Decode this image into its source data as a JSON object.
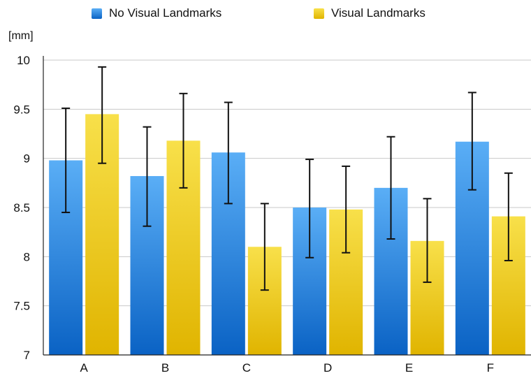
{
  "chart_data": {
    "type": "bar",
    "unit_label": "[mm]",
    "categories": [
      "A",
      "B",
      "C",
      "D",
      "E",
      "F"
    ],
    "series": [
      {
        "name": "No Visual Landmarks",
        "color_top": "#5aaef6",
        "color_bottom": "#0a62c4",
        "values": [
          8.98,
          8.82,
          9.06,
          8.5,
          8.7,
          9.17
        ],
        "error_low": [
          8.45,
          8.31,
          8.54,
          7.99,
          8.18,
          8.68
        ],
        "error_high": [
          9.51,
          9.32,
          9.57,
          8.99,
          9.22,
          9.67
        ]
      },
      {
        "name": "Visual Landmarks",
        "color_top": "#f8e04a",
        "color_bottom": "#e0b400",
        "values": [
          9.45,
          9.18,
          8.1,
          8.48,
          8.16,
          8.41
        ],
        "error_low": [
          8.95,
          8.7,
          7.66,
          8.04,
          7.74,
          7.96
        ],
        "error_high": [
          9.93,
          9.66,
          8.54,
          8.92,
          8.59,
          8.85
        ]
      }
    ],
    "yticks": [
      "10",
      "9.5",
      "9",
      "8.5",
      "8",
      "7.5",
      "7"
    ],
    "ylim": [
      7,
      10
    ],
    "grid": true,
    "legend_position": "top"
  }
}
